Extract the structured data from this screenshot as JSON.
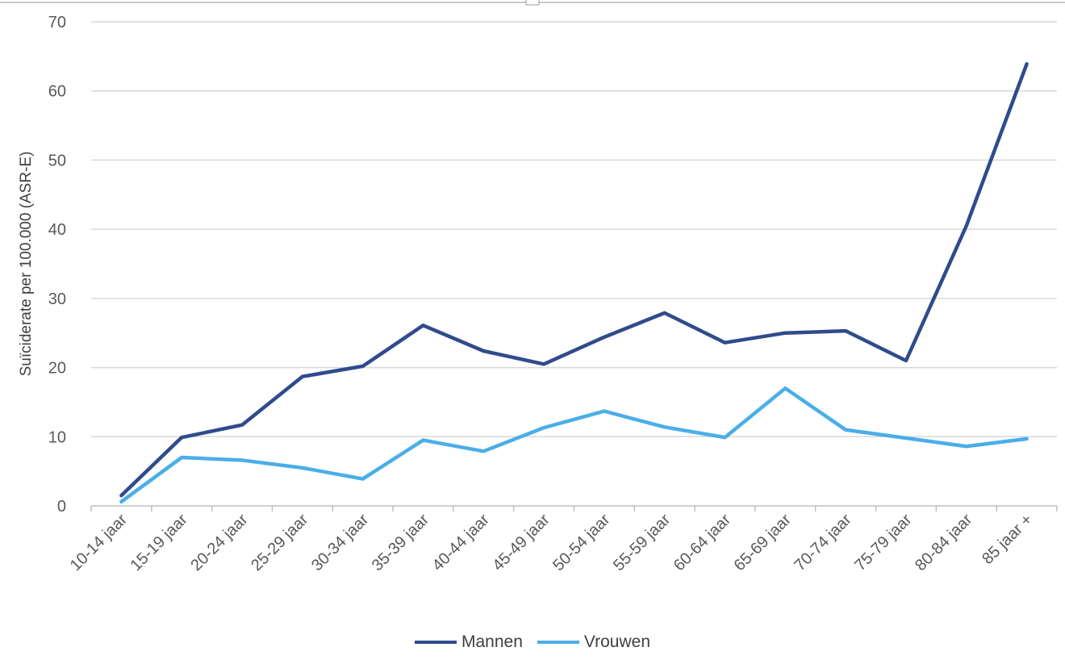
{
  "chart_data": {
    "type": "line",
    "title": "",
    "xlabel": "",
    "ylabel": "Suïciderate per 100.000 (ASR-E)",
    "ylim": [
      0,
      70
    ],
    "yticks": [
      "0",
      "10",
      "20",
      "30",
      "40",
      "50",
      "60",
      "70"
    ],
    "grid": true,
    "legend_position": "bottom",
    "categories": [
      "10-14 jaar",
      "15-19 jaar",
      "20-24 jaar",
      "25-29 jaar",
      "30-34 jaar",
      "35-39 jaar",
      "40-44 jaar",
      "45-49 jaar",
      "50-54 jaar",
      "55-59 jaar",
      "60-64 jaar",
      "65-69 jaar",
      "70-74 jaar",
      "75-79 jaar",
      "80-84 jaar",
      "85 jaar +"
    ],
    "series": [
      {
        "name": "Mannen",
        "color": "#2F4B8C",
        "values": [
          1.5,
          9.9,
          11.7,
          18.7,
          20.2,
          26.1,
          22.4,
          20.5,
          24.4,
          27.9,
          23.6,
          25.0,
          25.3,
          21.0,
          40.5,
          63.9
        ]
      },
      {
        "name": "Vrouwen",
        "color": "#4AAEE8",
        "values": [
          0.6,
          7.0,
          6.6,
          5.5,
          3.9,
          9.5,
          7.9,
          11.3,
          13.7,
          11.4,
          9.9,
          17.0,
          11.0,
          9.8,
          8.6,
          9.7
        ]
      }
    ]
  }
}
